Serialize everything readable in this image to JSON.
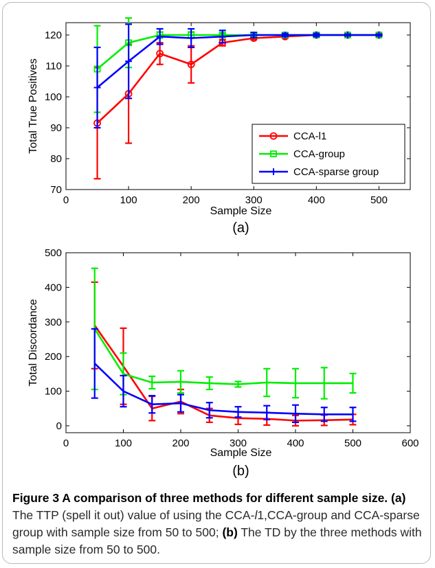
{
  "chart_data": [
    {
      "type": "line",
      "panel": "(a)",
      "xlabel": "Sample Size",
      "ylabel": "Total True Positives",
      "xlim": [
        0,
        550
      ],
      "ylim": [
        70,
        124
      ],
      "xticks": [
        0,
        100,
        200,
        300,
        400,
        500
      ],
      "yticks": [
        70,
        80,
        90,
        100,
        110,
        120
      ],
      "legend_position": "bottom-right",
      "x": [
        50,
        100,
        150,
        200,
        250,
        300,
        350,
        400,
        450,
        500
      ],
      "series": [
        {
          "name": "CCA-l1",
          "marker": "o",
          "color": "#ff0000",
          "values": [
            91.5,
            101,
            114,
            110.5,
            117.5,
            119,
            119.5,
            120,
            120,
            120
          ],
          "err": [
            18,
            16,
            3.5,
            6,
            1,
            0.5,
            0.5,
            0.3,
            0.3,
            0.3
          ]
        },
        {
          "name": "CCA-group",
          "marker": "s",
          "color": "#00ee00",
          "values": [
            109,
            117.5,
            120,
            120,
            120,
            120,
            120,
            120,
            120,
            120
          ],
          "err": [
            14,
            8,
            1,
            1,
            0.5,
            0.3,
            0.3,
            0.3,
            0.3,
            0.3
          ]
        },
        {
          "name": "CCA-sparse group",
          "marker": "+",
          "color": "#0000ff",
          "values": [
            103,
            111.5,
            119.5,
            119,
            119.5,
            120,
            120,
            120,
            120,
            120
          ],
          "err": [
            13,
            12,
            2.5,
            3,
            2,
            0.8,
            0.5,
            0.5,
            0.3,
            0.3
          ]
        }
      ]
    },
    {
      "type": "line",
      "panel": "(b)",
      "xlabel": "Sample Size",
      "ylabel": "Total Discordance",
      "xlim": [
        0,
        600
      ],
      "ylim": [
        -20,
        500
      ],
      "xticks": [
        0,
        100,
        200,
        300,
        400,
        500,
        600
      ],
      "yticks": [
        0,
        100,
        200,
        300,
        400,
        500
      ],
      "x": [
        50,
        100,
        150,
        200,
        250,
        300,
        350,
        400,
        450,
        500
      ],
      "series": [
        {
          "color": "#ff0000",
          "values": [
            290,
            172,
            50,
            70,
            30,
            22,
            20,
            15,
            16,
            18
          ],
          "err": [
            125,
            110,
            35,
            35,
            20,
            18,
            18,
            15,
            15,
            15
          ]
        },
        {
          "color": "#00ee00",
          "values": [
            280,
            150,
            125,
            127,
            123,
            120,
            125,
            123,
            123,
            123
          ],
          "err": [
            175,
            60,
            18,
            32,
            18,
            8,
            40,
            42,
            45,
            28
          ]
        },
        {
          "color": "#0000ff",
          "values": [
            180,
            100,
            62,
            65,
            45,
            40,
            38,
            35,
            33,
            33
          ],
          "err": [
            100,
            45,
            25,
            25,
            22,
            15,
            20,
            25,
            20,
            20
          ]
        }
      ]
    }
  ],
  "caption": {
    "title": "Figure 3 A comparison of three methods for different sample size.",
    "label_a": "(a)",
    "text_a": " The TTP (spell it out) value of using the CCA-",
    "italic_l": "l",
    "text_a2": "1,CCA-group and CCA-sparse group with sample size from 50 to 500; ",
    "label_b": "(b)",
    "text_b": " The TD by the three methods with sample size from 50 to 500."
  }
}
